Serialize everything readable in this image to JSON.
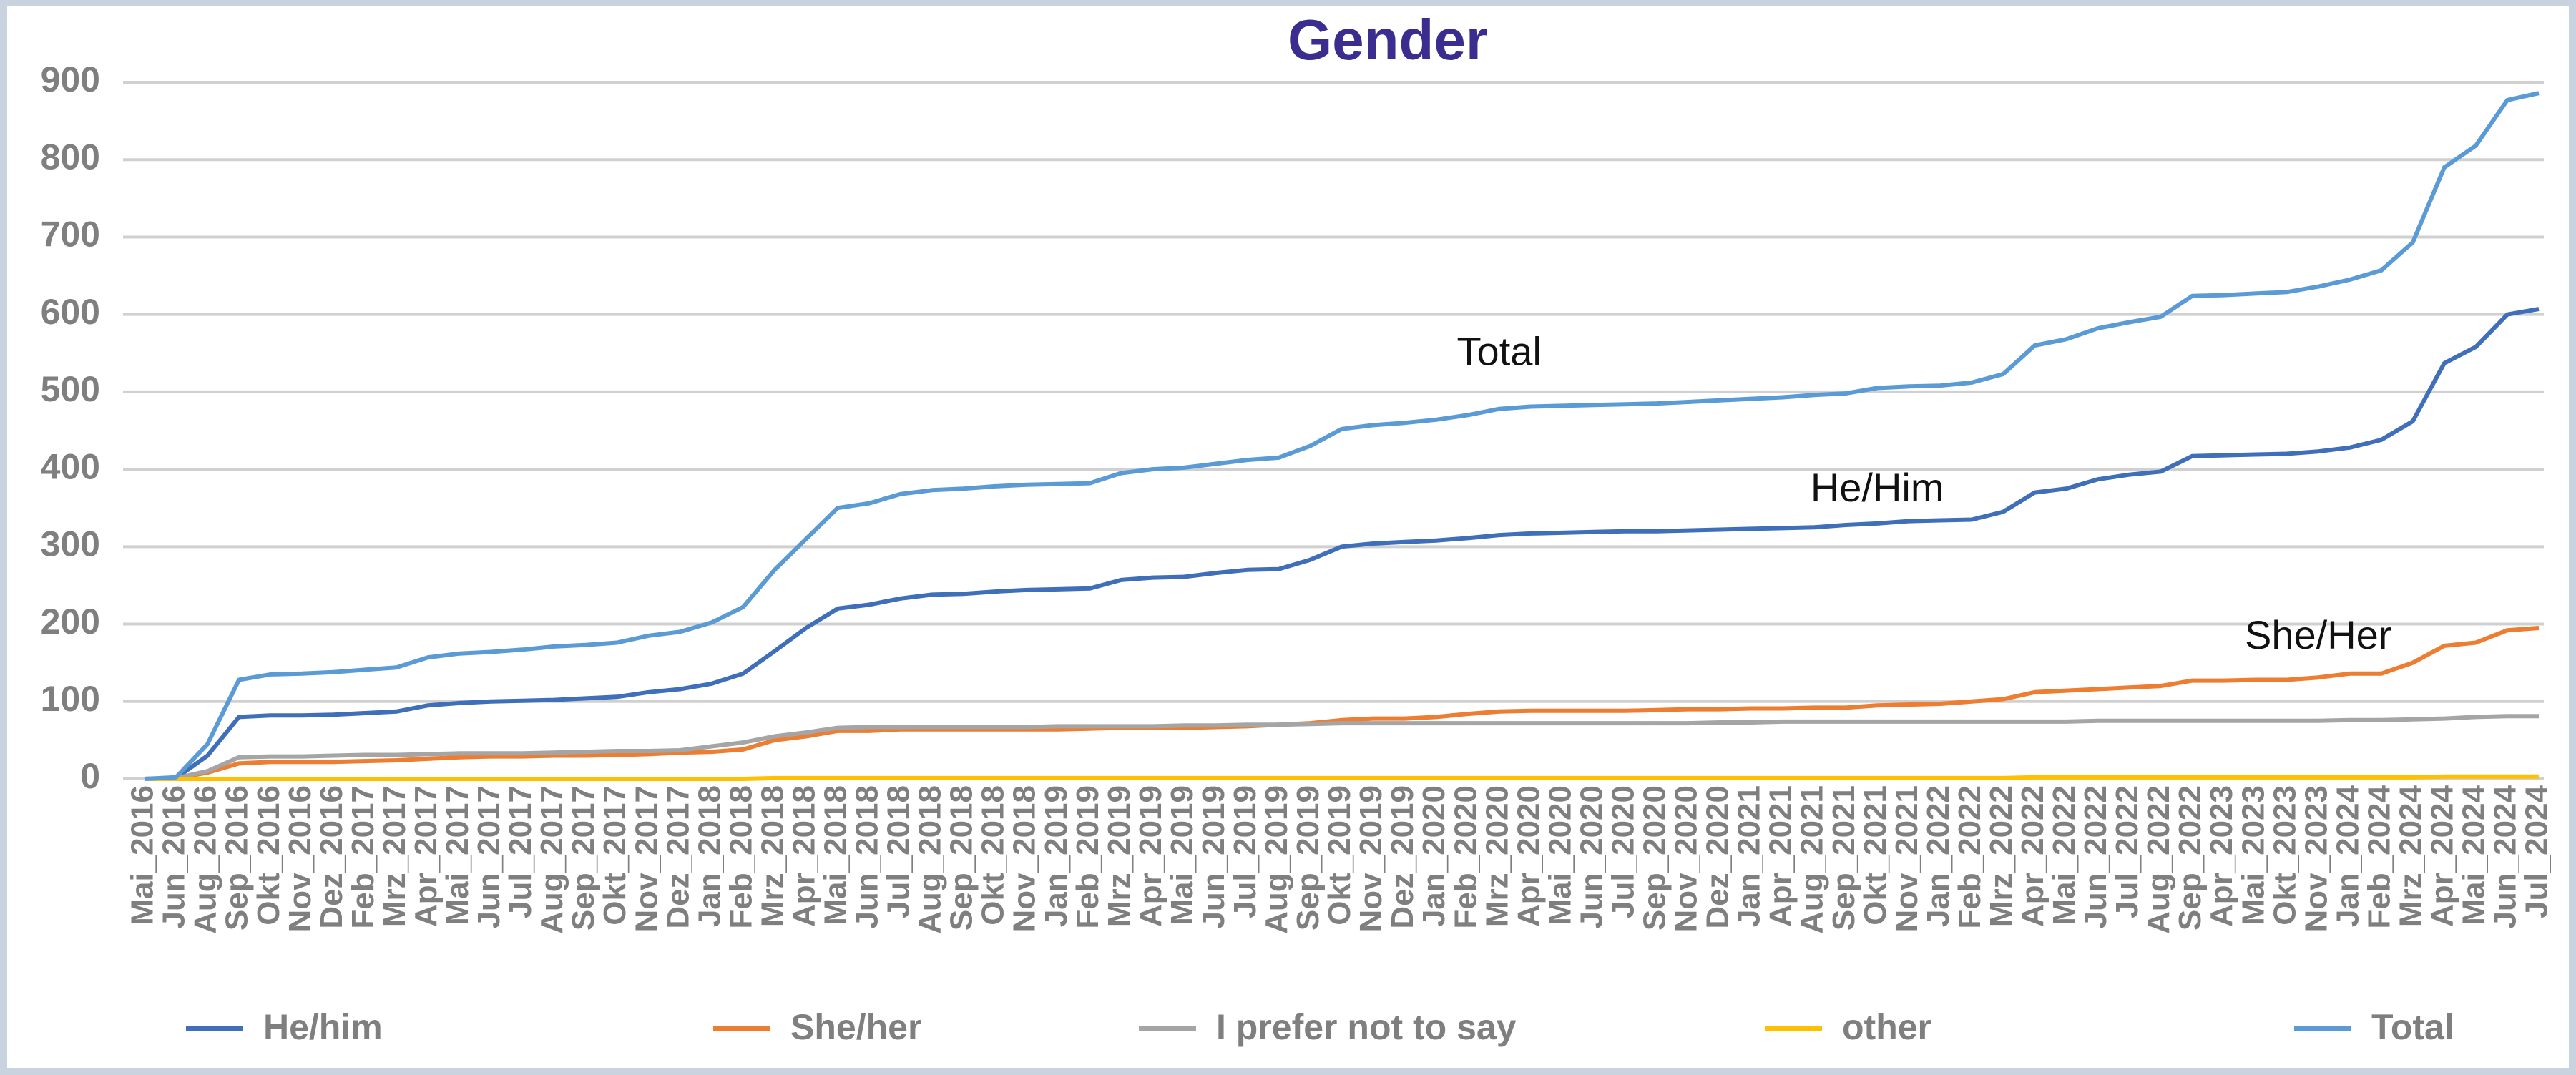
{
  "chart_data": {
    "type": "line",
    "title": "Gender",
    "categories": [
      "Mai_2016",
      "Jun_2016",
      "Aug_2016",
      "Sep_2016",
      "Okt_2016",
      "Nov_2016",
      "Dez_2016",
      "Feb_2017",
      "Mrz_2017",
      "Apr_2017",
      "Mai_2017",
      "Jun_2017",
      "Jul_2017",
      "Aug_2017",
      "Sep_2017",
      "Okt_2017",
      "Nov_2017",
      "Dez_2017",
      "Jan_2018",
      "Feb_2018",
      "Mrz_2018",
      "Apr_2018",
      "Mai_2018",
      "Jun_2018",
      "Jul_2018",
      "Aug_2018",
      "Sep_2018",
      "Okt_2018",
      "Nov_2018",
      "Jan_2019",
      "Feb_2019",
      "Mrz_2019",
      "Apr_2019",
      "Mai_2019",
      "Jun_2019",
      "Jul_2019",
      "Aug_2019",
      "Sep_2019",
      "Okt_2019",
      "Nov_2019",
      "Dez_2019",
      "Jan_2020",
      "Feb_2020",
      "Mrz_2020",
      "Apr_2020",
      "Mai_2020",
      "Jun_2020",
      "Jul_2020",
      "Sep_2020",
      "Nov_2020",
      "Dez_2020",
      "Jan_2021",
      "Apr_2021",
      "Aug_2021",
      "Sep_2021",
      "Okt_2021",
      "Nov_2021",
      "Jan_2022",
      "Feb_2022",
      "Mrz_2022",
      "Apr_2022",
      "Mai_2022",
      "Jun_2022",
      "Jul_2022",
      "Aug_2022",
      "Sep_2022",
      "Apr_2023",
      "Mai_2023",
      "Okt_2023",
      "Nov_2023",
      "Jan_2024",
      "Feb_2024",
      "Mrz_2024",
      "Apr_2024",
      "Mai_2024",
      "Jun_2024",
      "Jul_2024"
    ],
    "series": [
      {
        "name": "He/him",
        "color": "#3f6fb8",
        "values": [
          0,
          1,
          30,
          80,
          82,
          82,
          83,
          85,
          87,
          95,
          98,
          100,
          101,
          102,
          104,
          106,
          112,
          116,
          123,
          136,
          165,
          195,
          220,
          225,
          233,
          238,
          239,
          242,
          244,
          245,
          246,
          257,
          260,
          261,
          266,
          270,
          271,
          283,
          300,
          304,
          306,
          308,
          311,
          315,
          317,
          318,
          319,
          320,
          320,
          321,
          322,
          323,
          324,
          325,
          328,
          330,
          333,
          334,
          335,
          345,
          370,
          375,
          387,
          393,
          397,
          417,
          418,
          419,
          420,
          423,
          428,
          438,
          462,
          537,
          558,
          600,
          607
        ]
      },
      {
        "name": "She/her",
        "color": "#ed7d31",
        "values": [
          0,
          1,
          8,
          20,
          22,
          22,
          22,
          23,
          24,
          26,
          28,
          29,
          29,
          30,
          30,
          31,
          32,
          34,
          35,
          38,
          50,
          55,
          62,
          62,
          64,
          64,
          64,
          64,
          64,
          64,
          65,
          66,
          66,
          66,
          67,
          68,
          70,
          72,
          76,
          78,
          78,
          80,
          84,
          87,
          88,
          88,
          88,
          88,
          89,
          90,
          90,
          91,
          91,
          92,
          92,
          95,
          96,
          97,
          100,
          103,
          112,
          114,
          116,
          118,
          120,
          127,
          127,
          128,
          128,
          131,
          136,
          136,
          150,
          172,
          176,
          192,
          195
        ]
      },
      {
        "name": "I prefer not to say",
        "color": "#a5a5a5",
        "values": [
          0,
          1,
          10,
          28,
          29,
          29,
          30,
          31,
          31,
          32,
          33,
          33,
          33,
          34,
          35,
          36,
          36,
          37,
          42,
          47,
          55,
          60,
          66,
          67,
          67,
          67,
          67,
          67,
          67,
          68,
          68,
          68,
          68,
          69,
          69,
          70,
          70,
          71,
          72,
          72,
          72,
          72,
          72,
          72,
          72,
          72,
          72,
          72,
          72,
          72,
          73,
          73,
          74,
          74,
          74,
          74,
          74,
          74,
          74,
          74,
          74,
          74,
          75,
          75,
          75,
          75,
          75,
          75,
          75,
          75,
          76,
          76,
          77,
          78,
          80,
          81,
          81
        ]
      },
      {
        "name": "other",
        "color": "#ffc000",
        "values": [
          0,
          0,
          0,
          0,
          0,
          0,
          0,
          0,
          0,
          0,
          0,
          0,
          0,
          0,
          0,
          0,
          0,
          0,
          0,
          0,
          1,
          1,
          1,
          1,
          1,
          1,
          1,
          1,
          1,
          1,
          1,
          1,
          1,
          1,
          1,
          1,
          1,
          1,
          1,
          1,
          1,
          1,
          1,
          1,
          1,
          1,
          1,
          1,
          1,
          1,
          1,
          1,
          1,
          1,
          1,
          1,
          1,
          1,
          1,
          1,
          2,
          2,
          2,
          2,
          2,
          2,
          2,
          2,
          2,
          2,
          2,
          2,
          2,
          3,
          3,
          3,
          3
        ]
      },
      {
        "name": "Total",
        "color": "#5b9bd5",
        "values": [
          0,
          2,
          45,
          128,
          135,
          136,
          138,
          141,
          144,
          157,
          162,
          164,
          167,
          171,
          173,
          176,
          185,
          190,
          202,
          222,
          270,
          310,
          350,
          356,
          368,
          373,
          375,
          378,
          380,
          381,
          382,
          395,
          400,
          402,
          407,
          412,
          415,
          430,
          452,
          457,
          460,
          464,
          470,
          478,
          481,
          482,
          483,
          484,
          485,
          487,
          489,
          491,
          493,
          496,
          498,
          505,
          507,
          508,
          512,
          523,
          560,
          568,
          582,
          590,
          597,
          624,
          625,
          627,
          629,
          636,
          645,
          657,
          693,
          790,
          818,
          877,
          886
        ]
      }
    ],
    "annotations": [
      {
        "text": "Total",
        "index": 43,
        "value": 548
      },
      {
        "text": "He/Him",
        "index": 55,
        "value": 372
      },
      {
        "text": "She/Her",
        "index": 69,
        "value": 182
      }
    ],
    "ylim": [
      0,
      900
    ],
    "yticks": [
      0,
      100,
      200,
      300,
      400,
      500,
      600,
      700,
      800,
      900
    ],
    "grid": true
  }
}
